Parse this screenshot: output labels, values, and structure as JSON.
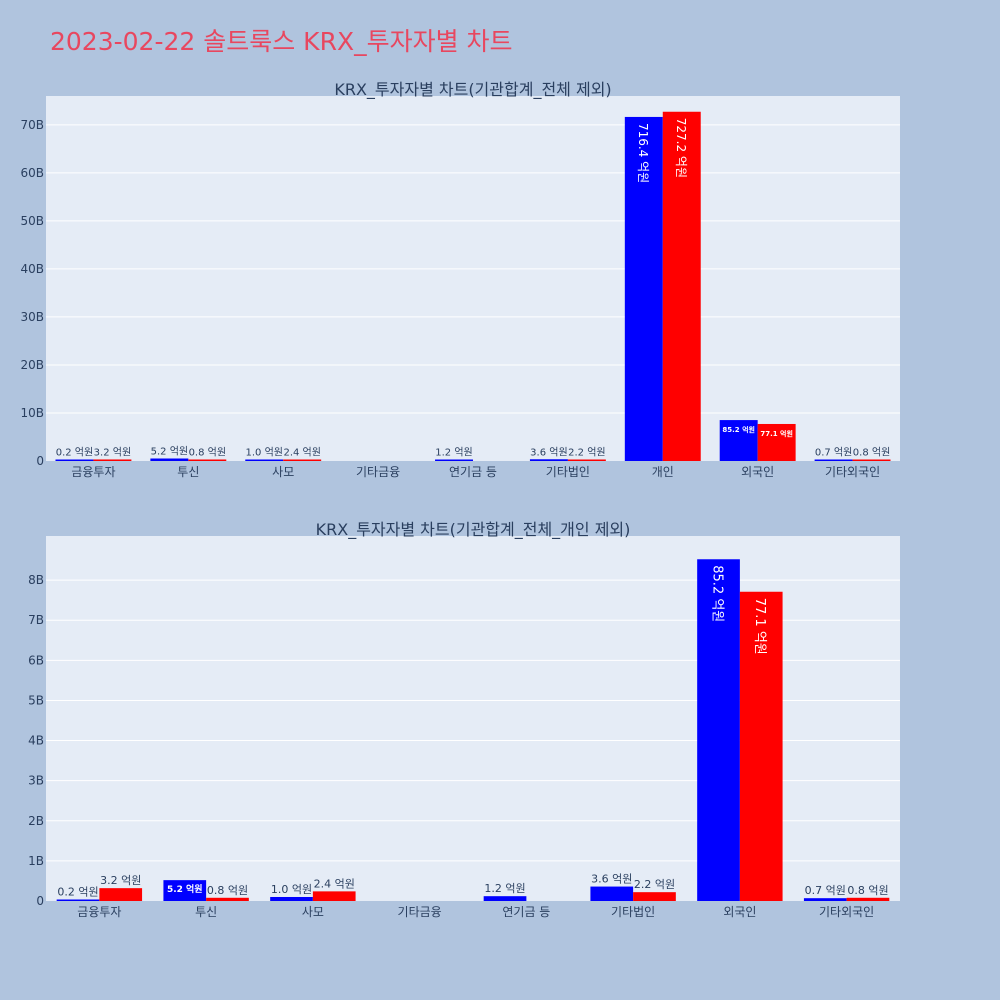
{
  "page": {
    "title": "2023-02-22 솔트룩스 KRX_투자자별 차트"
  },
  "colors": {
    "background": "#b0c4de",
    "plot_bg": "#e5ecf6",
    "title": "#e8475f",
    "buy": "#0000ff",
    "sell": "#ff0000"
  },
  "chart_data": [
    {
      "type": "bar",
      "title": "KRX_투자자별 차트(기관합계_전체 제외)",
      "categories": [
        "금융투자",
        "투신",
        "사모",
        "기타금융",
        "연기금 등",
        "기타법인",
        "개인",
        "외국인",
        "기타외국인"
      ],
      "series": [
        {
          "values": [
            0.2,
            5.2,
            1.0,
            0,
            1.2,
            3.6,
            716.4,
            85.2,
            0.7
          ],
          "labels": [
            "0.2 억원",
            "5.2 억원",
            "1.0 억원",
            "",
            "1.2 억원",
            "3.6 억원",
            "716.4 억원",
            "85.2 억원",
            "0.7 억원"
          ]
        },
        {
          "values": [
            3.2,
            0.8,
            2.4,
            0,
            0,
            2.2,
            727.2,
            77.1,
            0.8
          ],
          "labels": [
            "3.2 억원",
            "0.8 억원",
            "2.4 억원",
            "",
            "",
            "2.2 억원",
            "727.2 억원",
            "77.1 억원",
            "0.8 억원"
          ]
        }
      ],
      "yticks": [
        "0",
        "10B",
        "20B",
        "30B",
        "40B",
        "50B",
        "60B",
        "70B"
      ],
      "ylim": [
        0,
        760
      ],
      "grid": true
    },
    {
      "type": "bar",
      "title": "KRX_투자자별 차트(기관합계_전체_개인 제외)",
      "categories": [
        "금융투자",
        "투신",
        "사모",
        "기타금융",
        "연기금 등",
        "기타법인",
        "외국인",
        "기타외국인"
      ],
      "series": [
        {
          "values": [
            0.2,
            5.2,
            1.0,
            0,
            1.2,
            3.6,
            85.2,
            0.7
          ],
          "labels": [
            "0.2 억원",
            "5.2 억원",
            "1.0 억원",
            "",
            "1.2 억원",
            "3.6 억원",
            "85.2 억원",
            "0.7 억원"
          ]
        },
        {
          "values": [
            3.2,
            0.8,
            2.4,
            0,
            0,
            2.2,
            77.1,
            0.8
          ],
          "labels": [
            "3.2 억원",
            "0.8 억원",
            "2.4 억원",
            "",
            "",
            "2.2 억원",
            "77.1 억원",
            "0.8 억원"
          ]
        }
      ],
      "yticks": [
        "0",
        "1B",
        "2B",
        "3B",
        "4B",
        "5B",
        "6B",
        "7B",
        "8B"
      ],
      "ylim": [
        0,
        91
      ],
      "grid": true
    }
  ]
}
